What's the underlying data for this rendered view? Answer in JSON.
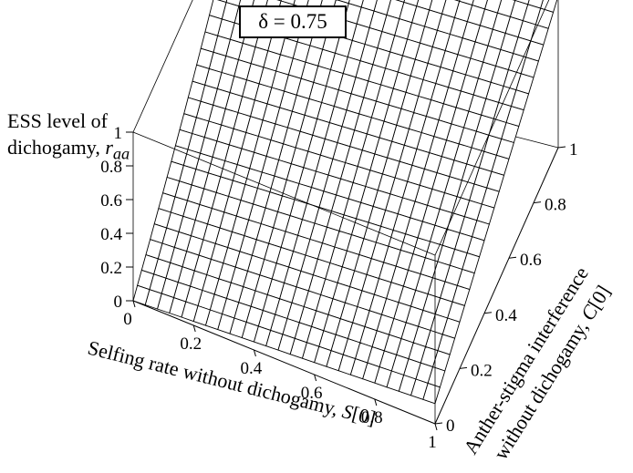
{
  "title": "δ = 0.75",
  "zlabel": {
    "line1": "ESS level of",
    "line2_prefix": "dichogamy, ",
    "line2_var": "r",
    "line2_sub": "aa"
  },
  "xlabel": {
    "text": "Selfing rate without dichogamy, ",
    "var": "S",
    "suffix": "[0]"
  },
  "ylabel": {
    "line1": "Anther-stigma interference",
    "line2_text": "without dichogamy, ",
    "line2_var": "C",
    "line2_suffix": "[0]"
  },
  "chart_data": {
    "type": "surface",
    "title": "δ = 0.75",
    "x_axis": {
      "label": "Selfing rate without dichogamy, S[0]",
      "range": [
        0,
        1
      ],
      "ticks": [
        "0",
        "0.2",
        "0.4",
        "0.6",
        "0.8",
        "1"
      ]
    },
    "y_axis": {
      "label": "Anther-stigma interference without dichogamy, C[0]",
      "range": [
        0,
        1
      ],
      "ticks": [
        "0",
        "0.2",
        "0.4",
        "0.6",
        "0.8",
        "1"
      ]
    },
    "z_axis": {
      "label": "ESS level of dichogamy, r_aa",
      "range": [
        0,
        1
      ],
      "ticks": [
        "0",
        "0.2",
        "0.4",
        "0.6",
        "0.8",
        "1"
      ]
    },
    "grid_resolution": 25,
    "surface_samples": [
      {
        "S": 0.0,
        "C": 0.0,
        "r": 0.0
      },
      {
        "S": 1.0,
        "C": 0.0,
        "r": 0.12
      },
      {
        "S": 0.0,
        "C": 1.0,
        "r": 1.0
      },
      {
        "S": 1.0,
        "C": 1.0,
        "r": 0.9
      },
      {
        "S": 0.5,
        "C": 0.5,
        "r": 0.53
      }
    ],
    "box": true
  }
}
